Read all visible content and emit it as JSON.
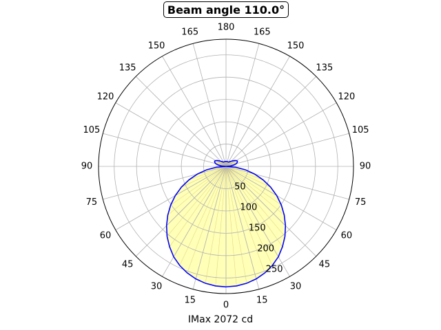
{
  "chart_data": {
    "type": "polar",
    "title": "Beam angle 110.0°",
    "xlabel": "IMax 2072 cd",
    "angle_tick_labels": [
      "0",
      "15",
      "30",
      "45",
      "60",
      "75",
      "90",
      "105",
      "120",
      "135",
      "150",
      "165",
      "180",
      "165",
      "150",
      "135",
      "120",
      "105",
      "90",
      "75",
      "60",
      "45",
      "30",
      "15"
    ],
    "radial_tick_labels": [
      "50",
      "100",
      "150",
      "200",
      "250"
    ],
    "r_range": [
      0,
      285
    ],
    "grid": true,
    "series": [
      {
        "angles_deg": [
          0,
          5,
          10,
          15,
          20,
          25,
          30,
          35,
          40,
          45,
          50,
          55,
          60,
          65,
          70,
          75,
          80,
          85,
          90,
          95,
          100,
          105,
          110,
          115,
          120,
          125,
          130,
          135,
          140,
          145,
          150,
          155,
          160,
          165,
          170,
          175,
          180
        ],
        "r": [
          270,
          269,
          266,
          261,
          254,
          245,
          234,
          220,
          205,
          188,
          170,
          151,
          131,
          110,
          88,
          66,
          44,
          22,
          0,
          10,
          18,
          24,
          27,
          28,
          26,
          23,
          19,
          16,
          14,
          12,
          11,
          11,
          11,
          11,
          11,
          11,
          11
        ]
      }
    ],
    "colors": {
      "line": "#0000ff",
      "fill": "#ffffb8",
      "grid": "#b0b0b0",
      "spoke": "#e2d98a"
    }
  }
}
